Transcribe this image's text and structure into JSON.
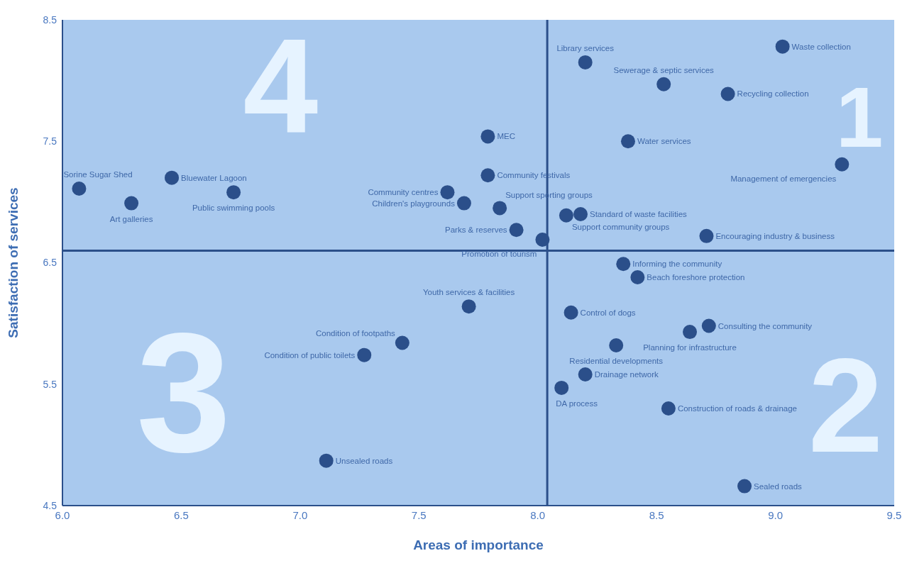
{
  "chart_data": {
    "type": "scatter",
    "xlabel": "Areas of importance",
    "ylabel": "Satisfaction of services",
    "xlim": [
      6.0,
      9.5
    ],
    "xticks": [
      {
        "value": 6.0,
        "label": "6.0"
      },
      6.5,
      {
        "value": 7.0,
        "label": "7.0"
      },
      7.5,
      {
        "value": 8.0,
        "label": "8.0"
      },
      8.5,
      {
        "value": 9.0,
        "label": "9.0"
      },
      9.5
    ],
    "ylim": [
      4.5,
      8.5
    ],
    "yticks": [
      4.5,
      5.5,
      6.5,
      7.5,
      8.5
    ],
    "grid": false,
    "legend": false,
    "marker": "circle",
    "ref_lines": [
      {
        "axis": "x",
        "value": 8.04,
        "color": "#2b4f8a"
      },
      {
        "axis": "y",
        "value": 6.6,
        "color": "#2b4f8a"
      }
    ],
    "annotations": [
      "1",
      "2",
      "3",
      "4"
    ],
    "series": [
      {
        "name": "Waste collection",
        "color": "#2b4f8a",
        "x": [
          9.03
        ],
        "values": [
          8.28
        ]
      },
      {
        "name": "Library services",
        "color": "#2b4f8a",
        "x": [
          8.2
        ],
        "values": [
          8.15
        ]
      },
      {
        "name": "Sewerage & septic services",
        "color": "#2b4f8a",
        "x": [
          8.53
        ],
        "values": [
          7.97
        ]
      },
      {
        "name": "Recycling collection",
        "color": "#2b4f8a",
        "x": [
          8.8
        ],
        "values": [
          7.89
        ]
      },
      {
        "name": "MEC",
        "color": "#2b4f8a",
        "x": [
          7.79
        ],
        "values": [
          7.54
        ]
      },
      {
        "name": "Water services",
        "color": "#2b4f8a",
        "x": [
          8.38
        ],
        "values": [
          7.5
        ]
      },
      {
        "name": "Management of emergencies",
        "color": "#2b4f8a",
        "x": [
          9.28
        ],
        "values": [
          7.31
        ]
      },
      {
        "name": "Community festivals",
        "color": "#2b4f8a",
        "x": [
          7.79
        ],
        "values": [
          7.22
        ]
      },
      {
        "name": "Sorine Sugar Shed",
        "color": "#2b4f8a",
        "x": [
          6.07
        ],
        "values": [
          7.11
        ]
      },
      {
        "name": "Bluewater Lagoon",
        "color": "#2b4f8a",
        "x": [
          6.46
        ],
        "values": [
          7.2
        ]
      },
      {
        "name": "Art galleries",
        "color": "#2b4f8a",
        "x": [
          6.29
        ],
        "values": [
          6.99
        ]
      },
      {
        "name": "Public swimming pools",
        "color": "#2b4f8a",
        "x": [
          6.72
        ],
        "values": [
          7.08
        ]
      },
      {
        "name": "Community centres",
        "color": "#2b4f8a",
        "x": [
          7.62
        ],
        "values": [
          7.08
        ]
      },
      {
        "name": "Children's playgrounds",
        "color": "#2b4f8a",
        "x": [
          7.69
        ],
        "values": [
          6.99
        ]
      },
      {
        "name": "Support sporting groups",
        "color": "#2b4f8a",
        "x": [
          7.84
        ],
        "values": [
          6.95
        ]
      },
      {
        "name": "Standard of waste facilities",
        "color": "#2b4f8a",
        "x": [
          8.18
        ],
        "values": [
          6.9
        ]
      },
      {
        "name": "Support community groups",
        "color": "#2b4f8a",
        "x": [
          8.12
        ],
        "values": [
          6.89
        ]
      },
      {
        "name": "Parks & reserves",
        "color": "#2b4f8a",
        "x": [
          7.91
        ],
        "values": [
          6.77
        ]
      },
      {
        "name": "Promotion of tourism",
        "color": "#2b4f8a",
        "x": [
          8.02
        ],
        "values": [
          6.69
        ]
      },
      {
        "name": "Encouraging industry & business",
        "color": "#2b4f8a",
        "x": [
          8.71
        ],
        "values": [
          6.72
        ]
      },
      {
        "name": "Informing the community",
        "color": "#2b4f8a",
        "x": [
          8.36
        ],
        "values": [
          6.49
        ]
      },
      {
        "name": "Beach foreshore protection",
        "color": "#2b4f8a",
        "x": [
          8.42
        ],
        "values": [
          6.38
        ]
      },
      {
        "name": "Youth services & facilities",
        "color": "#2b4f8a",
        "x": [
          7.71
        ],
        "values": [
          6.14
        ]
      },
      {
        "name": "Control of dogs",
        "color": "#2b4f8a",
        "x": [
          8.14
        ],
        "values": [
          6.09
        ]
      },
      {
        "name": "Consulting the community",
        "color": "#2b4f8a",
        "x": [
          8.72
        ],
        "values": [
          5.98
        ]
      },
      {
        "name": "Planning for infrastructure",
        "color": "#2b4f8a",
        "x": [
          8.64
        ],
        "values": [
          5.93
        ]
      },
      {
        "name": "Condition of footpaths",
        "color": "#2b4f8a",
        "x": [
          7.43
        ],
        "values": [
          5.84
        ]
      },
      {
        "name": "Residential developments",
        "color": "#2b4f8a",
        "x": [
          8.33
        ],
        "values": [
          5.82
        ]
      },
      {
        "name": "Condition of public toilets",
        "color": "#2b4f8a",
        "x": [
          7.27
        ],
        "values": [
          5.74
        ]
      },
      {
        "name": "Drainage network",
        "color": "#2b4f8a",
        "x": [
          8.2
        ],
        "values": [
          5.58
        ]
      },
      {
        "name": "DA process",
        "color": "#2b4f8a",
        "x": [
          8.1
        ],
        "values": [
          5.47
        ]
      },
      {
        "name": "Construction of roads & drainage",
        "color": "#2b4f8a",
        "x": [
          8.55
        ],
        "values": [
          5.3
        ]
      },
      {
        "name": "Unsealed roads",
        "color": "#2b4f8a",
        "x": [
          7.11
        ],
        "values": [
          4.87
        ]
      },
      {
        "name": "Sealed roads",
        "color": "#2b4f8a",
        "x": [
          8.87
        ],
        "values": [
          4.66
        ]
      }
    ]
  }
}
